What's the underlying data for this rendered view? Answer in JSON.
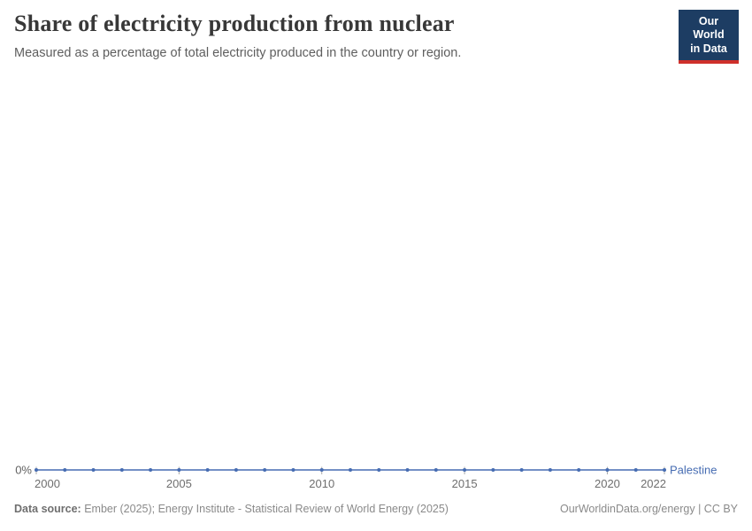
{
  "header": {
    "title": "Share of electricity production from nuclear",
    "subtitle": "Measured as a percentage of total electricity produced in the country or region.",
    "logo": {
      "line1": "Our World",
      "line2": "in Data",
      "bg_color": "#1d3d63",
      "accent_color": "#cf302b"
    }
  },
  "chart_data": {
    "type": "line",
    "title": "Share of electricity production from nuclear",
    "xlabel": "",
    "ylabel": "",
    "unit": "%",
    "grid": false,
    "x": [
      2000,
      2001,
      2002,
      2003,
      2004,
      2005,
      2006,
      2007,
      2008,
      2009,
      2010,
      2011,
      2012,
      2013,
      2014,
      2015,
      2016,
      2017,
      2018,
      2019,
      2020,
      2021,
      2022
    ],
    "series": [
      {
        "name": "Palestine",
        "color": "#466cb2",
        "values": [
          0,
          0,
          0,
          0,
          0,
          0,
          0,
          0,
          0,
          0,
          0,
          0,
          0,
          0,
          0,
          0,
          0,
          0,
          0,
          0,
          0,
          0,
          0
        ]
      }
    ],
    "x_ticks": [
      2000,
      2005,
      2010,
      2015,
      2020,
      2022
    ],
    "y_tick_labels": [
      "0%"
    ],
    "xlim": [
      2000,
      2022
    ],
    "ylim": [
      0,
      0
    ],
    "legend_position": "right-of-line-end",
    "axis_label_color": "#6e6e6e",
    "tick_color": "#a8a8a8"
  },
  "footer": {
    "datasource_label": "Data source:",
    "datasource_text": " Ember (2025); Energy Institute - Statistical Review of World Energy (2025)",
    "rights": "OurWorldinData.org/energy | CC BY"
  }
}
